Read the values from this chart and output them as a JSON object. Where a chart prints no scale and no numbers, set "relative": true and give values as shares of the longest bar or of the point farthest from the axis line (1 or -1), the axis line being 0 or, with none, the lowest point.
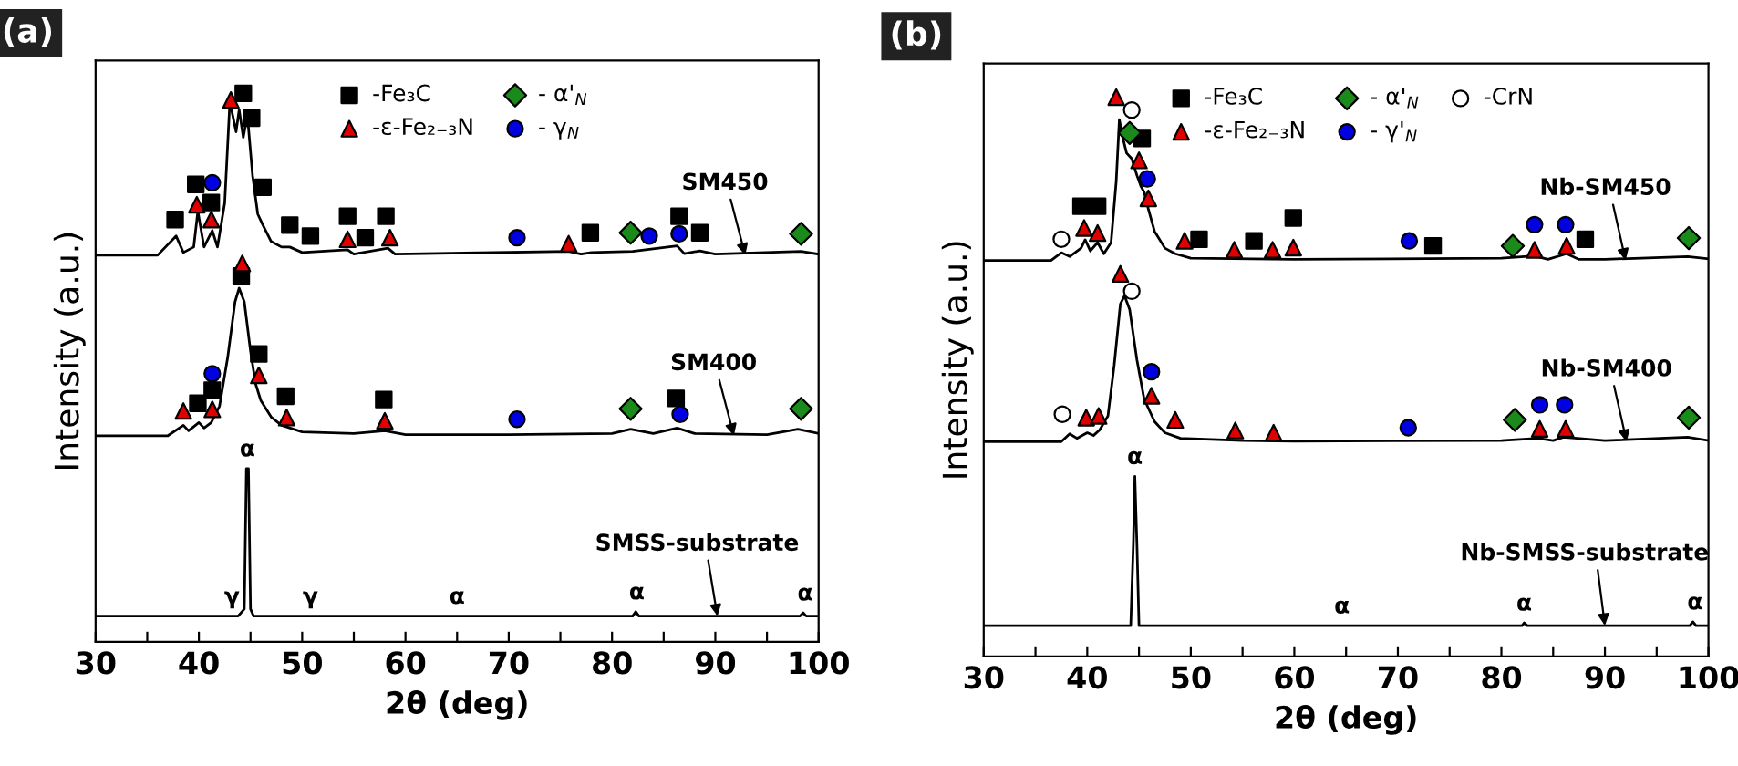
{
  "chart_data": [
    {
      "type": "line",
      "title": "(a)",
      "xlabel": "2θ (deg)",
      "ylabel": "Intensity (a.u.)",
      "xlim": [
        30,
        100
      ],
      "xticks": [
        30,
        {
          "value": 35,
          "label": null
        },
        40,
        {
          "value": 45,
          "label": null
        },
        50,
        {
          "value": 55,
          "label": null
        },
        60,
        {
          "value": 65,
          "label": null
        },
        70,
        {
          "value": 75,
          "label": null
        },
        80,
        {
          "value": 85,
          "label": null
        },
        90,
        {
          "value": 95,
          "label": null
        },
        100
      ],
      "relative": true,
      "tick_labels": "x",
      "legend": "top",
      "annotations": [
        {
          "text": "SM450",
          "x": 92.9,
          "y": 0.705
        },
        {
          "text": "SM400",
          "x": 91.8,
          "y": 0.376
        },
        {
          "text": "SMSS-substrate",
          "x": 90.2,
          "y": 0.047
        },
        {
          "text": "α",
          "x": 44.7,
          "y": 0.316
        },
        {
          "text": "γ",
          "x": 43.2,
          "y": 0.047
        },
        {
          "text": "γ",
          "x": 50.8,
          "y": 0.047
        },
        {
          "text": "α",
          "x": 65.0,
          "y": 0.047
        },
        {
          "text": "α",
          "x": 82.4,
          "y": 0.055
        },
        {
          "text": "α",
          "x": 98.7,
          "y": 0.053
        }
      ],
      "series": [
        {
          "color": "#000000",
          "x": [
            30,
            36,
            37.8,
            38.5,
            39.5,
            39.9,
            40.5,
            41.3,
            41.8,
            42.5,
            43.0,
            43.6,
            43.9,
            44.3,
            44.7,
            45.2,
            45.7,
            46.2,
            47,
            48,
            48.8,
            50,
            54.4,
            55,
            58.3,
            59,
            75.8,
            77,
            78,
            82,
            86.3,
            87,
            88.5,
            90,
            98.3,
            100
          ],
          "values": [
            0.705,
            0.705,
            0.74,
            0.71,
            0.72,
            0.785,
            0.72,
            0.75,
            0.72,
            0.8,
            0.985,
            0.93,
            0.97,
            0.92,
            0.96,
            0.85,
            0.78,
            0.76,
            0.73,
            0.72,
            0.72,
            0.71,
            0.715,
            0.707,
            0.718,
            0.707,
            0.712,
            0.707,
            0.71,
            0.712,
            0.722,
            0.708,
            0.713,
            0.707,
            0.712,
            0.707
          ]
        },
        {
          "color": "#000000",
          "x": [
            30,
            37,
            38.5,
            39,
            40,
            40.5,
            41.2,
            42,
            42.8,
            43.5,
            43.9,
            44.4,
            45,
            45.5,
            46,
            47,
            48,
            48.5,
            50,
            55,
            58,
            60,
            70,
            80,
            81.8,
            84,
            86.3,
            88,
            95,
            98,
            100
          ],
          "values": [
            0.376,
            0.376,
            0.395,
            0.385,
            0.4,
            0.39,
            0.4,
            0.43,
            0.52,
            0.62,
            0.645,
            0.62,
            0.53,
            0.47,
            0.44,
            0.41,
            0.395,
            0.392,
            0.383,
            0.38,
            0.385,
            0.378,
            0.378,
            0.38,
            0.388,
            0.38,
            0.39,
            0.38,
            0.378,
            0.388,
            0.38
          ]
        },
        {
          "color": "#000000",
          "x": [
            30,
            43.8,
            44.4,
            44.6,
            44.8,
            45.0,
            45.3,
            82.0,
            82.3,
            82.6,
            98.2,
            98.5,
            98.8,
            100
          ],
          "values": [
            0.047,
            0.047,
            0.06,
            0.316,
            0.316,
            0.06,
            0.047,
            0.047,
            0.055,
            0.047,
            0.047,
            0.053,
            0.047,
            0.047
          ]
        },
        {
          "type": "scatter",
          "name": "-Fe₃C",
          "marker": "square",
          "color": "#000000",
          "x": [
            37.7,
            39.7,
            41.2,
            44.3,
            45.1,
            46.2,
            48.8,
            50.8,
            54.4,
            56.1,
            58.1,
            77.9,
            86.5,
            88.5,
            44.1,
            45.8,
            39.9,
            41.3,
            48.4,
            57.9,
            86.2
          ],
          "values": [
            0.77,
            0.834,
            0.801,
            1.0,
            0.955,
            0.829,
            0.76,
            0.74,
            0.776,
            0.737,
            0.776,
            0.746,
            0.776,
            0.746,
            0.667,
            0.525,
            0.435,
            0.459,
            0.448,
            0.442,
            0.444
          ]
        },
        {
          "type": "scatter",
          "name": "-ε-Fe₂₋₃N",
          "marker": "triangle",
          "color": "#e00000",
          "x": [
            39.8,
            41.2,
            43.1,
            54.4,
            58.5,
            75.8,
            44.2,
            45.8,
            38.5,
            41.3,
            48.5,
            58.0
          ],
          "values": [
            0.797,
            0.77,
            0.988,
            0.734,
            0.737,
            0.726,
            0.69,
            0.486,
            0.421,
            0.424,
            0.409,
            0.403
          ]
        },
        {
          "type": "scatter",
          "name": "- α'$_{N}$",
          "marker": "diamond",
          "color": "#1a8a1a",
          "x": [
            81.8,
            98.3,
            81.8,
            98.3
          ],
          "values": [
            0.746,
            0.744,
            0.425,
            0.425
          ]
        },
        {
          "type": "scatter",
          "name": "- γ$_{N}$",
          "marker": "circle",
          "color": "#0000e0",
          "x": [
            41.3,
            70.8,
            83.6,
            86.5,
            41.3,
            70.8,
            86.6
          ],
          "values": [
            0.837,
            0.737,
            0.74,
            0.744,
            0.489,
            0.406,
            0.415
          ]
        }
      ]
    },
    {
      "type": "line",
      "title": "(b)",
      "xlabel": "2θ (deg)",
      "ylabel": "Intensity (a.u.)",
      "xlim": [
        30,
        100
      ],
      "xticks": [
        30,
        {
          "value": 35,
          "label": null
        },
        40,
        {
          "value": 45,
          "label": null
        },
        50,
        {
          "value": 55,
          "label": null
        },
        60,
        {
          "value": 65,
          "label": null
        },
        70,
        {
          "value": 75,
          "label": null
        },
        80,
        {
          "value": 85,
          "label": null
        },
        90,
        {
          "value": 95,
          "label": null
        },
        100
      ],
      "relative": true,
      "tick_labels": "x",
      "legend": "top",
      "annotations": [
        {
          "text": "Nb-SM450",
          "x": 92.0,
          "y": 0.708
        },
        {
          "text": "Nb-SM400",
          "x": 92.1,
          "y": 0.384
        },
        {
          "text": "Nb-SMSS-substrate",
          "x": 90.0,
          "y": 0.055
        },
        {
          "text": "α",
          "x": 44.6,
          "y": 0.322
        },
        {
          "text": "α",
          "x": 64.6,
          "y": 0.055
        },
        {
          "text": "α",
          "x": 82.2,
          "y": 0.06
        },
        {
          "text": "α",
          "x": 98.7,
          "y": 0.062
        }
      ],
      "series": [
        {
          "color": "#000000",
          "x": [
            30,
            36.5,
            37.5,
            38.3,
            39.4,
            39.8,
            40.3,
            41.0,
            41.6,
            42.3,
            42.8,
            43.1,
            43.4,
            43.8,
            44.3,
            44.8,
            45.2,
            45.5,
            45.9,
            46.5,
            47.5,
            48.5,
            50,
            60,
            80,
            83.2,
            84.5,
            86.3,
            87.5,
            90,
            98,
            100
          ],
          "values": [
            0.708,
            0.708,
            0.722,
            0.715,
            0.73,
            0.745,
            0.725,
            0.74,
            0.72,
            0.74,
            0.85,
            0.96,
            0.93,
            0.9,
            0.89,
            0.86,
            0.84,
            0.83,
            0.8,
            0.76,
            0.73,
            0.72,
            0.712,
            0.71,
            0.712,
            0.716,
            0.71,
            0.72,
            0.71,
            0.71,
            0.715,
            0.711
          ]
        },
        {
          "color": "#000000",
          "x": [
            30,
            37.5,
            38.3,
            39,
            40,
            40.6,
            41.2,
            42,
            42.6,
            43.2,
            43.6,
            44.1,
            44.8,
            45.5,
            46.5,
            47.5,
            49,
            55,
            60,
            80,
            83.5,
            85,
            86,
            90,
            98,
            100
          ],
          "values": [
            0.384,
            0.384,
            0.398,
            0.39,
            0.4,
            0.395,
            0.405,
            0.43,
            0.52,
            0.63,
            0.645,
            0.62,
            0.53,
            0.46,
            0.42,
            0.4,
            0.39,
            0.386,
            0.385,
            0.386,
            0.39,
            0.386,
            0.392,
            0.386,
            0.392,
            0.386
          ]
        },
        {
          "color": "#000000",
          "x": [
            30,
            44.2,
            44.45,
            44.6,
            44.8,
            45.0,
            82.0,
            82.2,
            82.5,
            98.2,
            98.5,
            98.8,
            100
          ],
          "values": [
            0.055,
            0.055,
            0.2,
            0.322,
            0.2,
            0.055,
            0.055,
            0.06,
            0.055,
            0.055,
            0.062,
            0.055,
            0.055
          ]
        },
        {
          "type": "scatter",
          "name": "-Fe₃C",
          "marker": "square",
          "color": "#000000",
          "x": [
            39.4,
            41.0,
            45.3,
            50.8,
            56.1,
            59.9,
            73.4,
            88.1
          ],
          "values": [
            0.805,
            0.805,
            0.926,
            0.746,
            0.743,
            0.784,
            0.734,
            0.746
          ]
        },
        {
          "type": "scatter",
          "name": "-ε-Fe₂₋₃N",
          "marker": "triangle",
          "color": "#e00000",
          "x": [
            42.8,
            39.7,
            41.0,
            45.0,
            45.9,
            49.4,
            54.2,
            57.9,
            59.9,
            83.2,
            86.3,
            43.2,
            39.9,
            41.1,
            46.2,
            48.5,
            54.3,
            58.0,
            83.7,
            86.2
          ],
          "values": [
            1.0,
            0.766,
            0.757,
            0.887,
            0.819,
            0.743,
            0.727,
            0.727,
            0.731,
            0.727,
            0.734,
            0.684,
            0.427,
            0.43,
            0.466,
            0.423,
            0.404,
            0.4,
            0.407,
            0.407
          ]
        },
        {
          "type": "scatter",
          "name": "- α'$_{N}$",
          "marker": "diamond",
          "color": "#1a8a1a",
          "x": [
            44.1,
            81.1,
            98.1,
            81.3,
            98.1
          ],
          "values": [
            0.936,
            0.734,
            0.748,
            0.423,
            0.427
          ]
        },
        {
          "type": "scatter",
          "name": "- γ'$_{N}$",
          "marker": "circle",
          "color": "#0000e0",
          "x": [
            45.8,
            71.1,
            83.2,
            86.2,
            46.2,
            71.0,
            83.7,
            86.1
          ],
          "values": [
            0.854,
            0.743,
            0.772,
            0.772,
            0.509,
            0.409,
            0.45,
            0.45
          ]
        },
        {
          "type": "scatter",
          "name": "-CrN",
          "marker": "circle",
          "color": "#ffffff",
          "x": [
            37.5,
            44.3,
            37.6,
            44.3
          ],
          "values": [
            0.746,
            0.977,
            0.433,
            0.653
          ]
        }
      ]
    }
  ]
}
